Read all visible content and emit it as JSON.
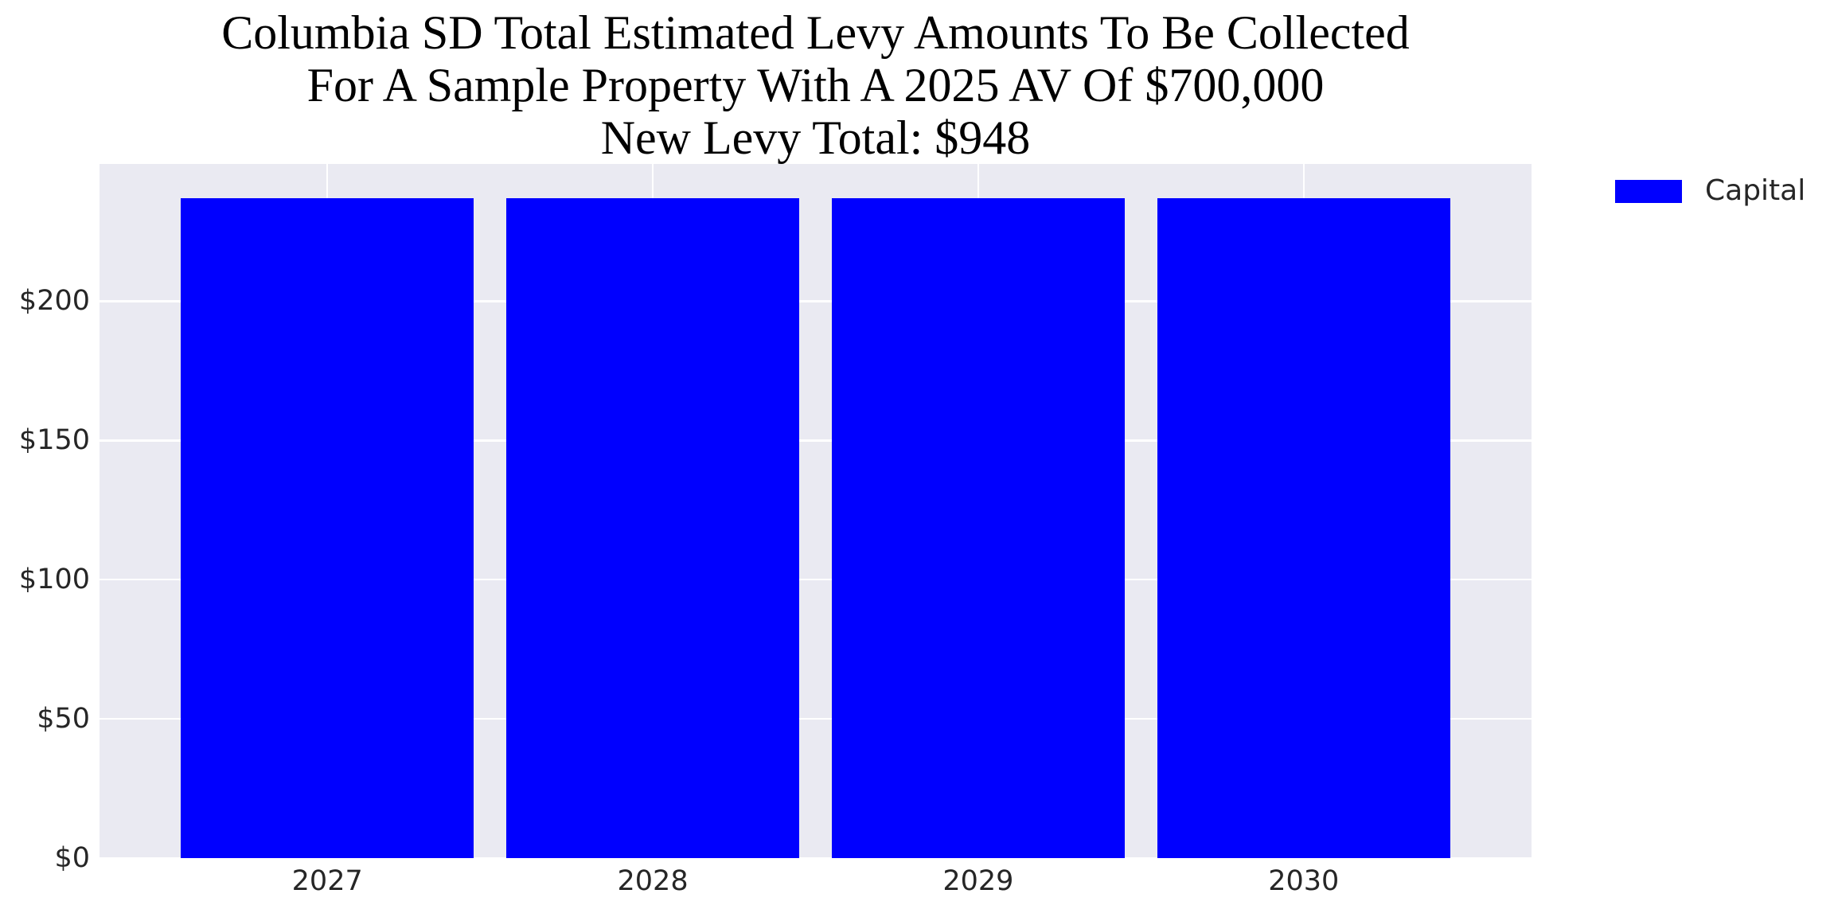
{
  "chart_data": {
    "type": "bar",
    "title_lines": [
      "Columbia SD Total Estimated Levy Amounts To Be Collected",
      "For A Sample Property With A 2025 AV Of $700,000",
      "New Levy Total: $948"
    ],
    "categories": [
      "2027",
      "2028",
      "2029",
      "2030"
    ],
    "series": [
      {
        "name": "Capital",
        "color": "#0000ff",
        "values": [
          237,
          237,
          237,
          237
        ]
      }
    ],
    "y_ticks": [
      {
        "value": 0,
        "label": "$0"
      },
      {
        "value": 50,
        "label": "$50"
      },
      {
        "value": 100,
        "label": "$100"
      },
      {
        "value": 150,
        "label": "$150"
      },
      {
        "value": 200,
        "label": "$200"
      }
    ],
    "ylim": [
      0,
      249.3
    ],
    "xlim": [
      -0.7,
      3.7
    ],
    "bar_width_units": 0.9,
    "grid": true,
    "legend": {
      "position": "outside-upper-right",
      "entries": [
        {
          "label": "Capital",
          "color": "#0000ff"
        }
      ]
    },
    "colors": {
      "figure_background": "#ffffff",
      "plot_background": "#eaeaf2",
      "gridline": "#ffffff",
      "bar": "#0000ff",
      "tick_text": "#262626",
      "title_text": "#000000"
    }
  }
}
